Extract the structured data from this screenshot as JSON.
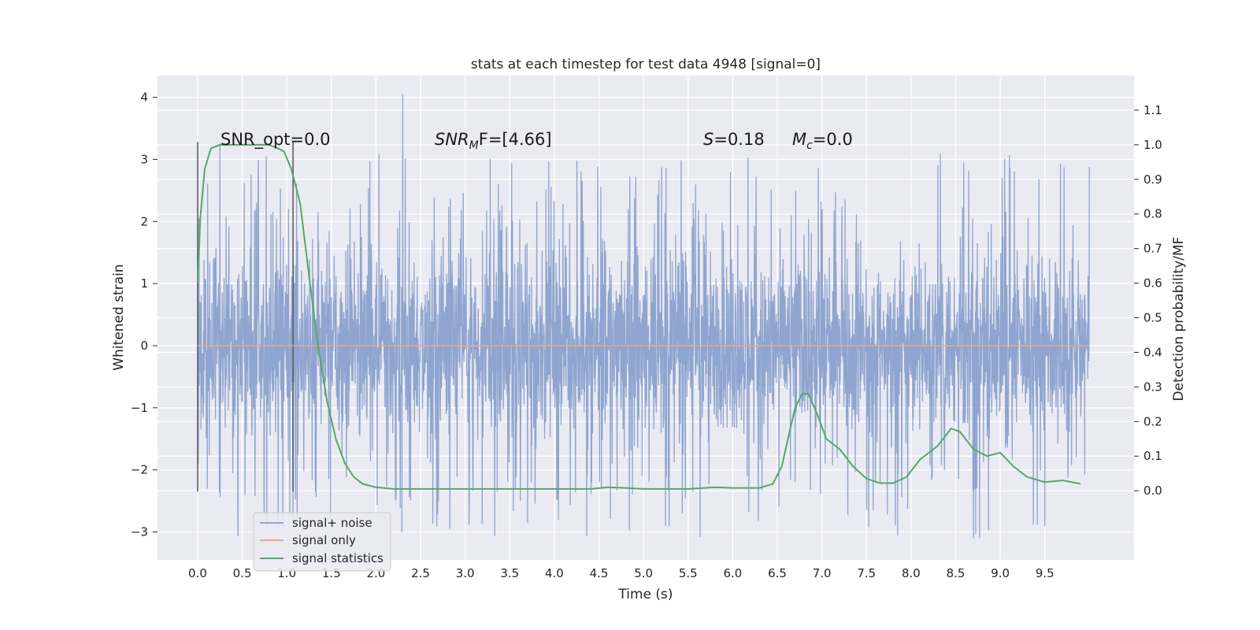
{
  "chart_data": {
    "type": "line",
    "title": "stats at each timestep for test data 4948 [signal=0]",
    "xlabel": "Time (s)",
    "ylabel": "Whitened strain",
    "y2label": "Detection probability/MF",
    "xlim": [
      -0.45,
      10.5
    ],
    "ylim": [
      -3.45,
      4.35
    ],
    "y2lim": [
      -0.2,
      1.2
    ],
    "x_ticks": [
      0.0,
      0.5,
      1.0,
      1.5,
      2.0,
      2.5,
      3.0,
      3.5,
      4.0,
      4.5,
      5.0,
      5.5,
      6.0,
      6.5,
      7.0,
      7.5,
      8.0,
      8.5,
      9.0,
      9.5
    ],
    "x_tick_labels": [
      "0.0",
      "0.5",
      "1.0",
      "1.5",
      "2.0",
      "2.5",
      "3.0",
      "3.5",
      "4.0",
      "4.5",
      "5.0",
      "5.5",
      "6.0",
      "6.5",
      "7.0",
      "7.5",
      "8.0",
      "8.5",
      "9.0",
      "9.5"
    ],
    "y_ticks": [
      -3,
      -2,
      -1,
      0,
      1,
      2,
      3,
      4
    ],
    "y_tick_labels": [
      "−3",
      "−2",
      "−1",
      "0",
      "1",
      "2",
      "3",
      "4"
    ],
    "y2_ticks": [
      0.0,
      0.1,
      0.2,
      0.3,
      0.4,
      0.5,
      0.6,
      0.7,
      0.8,
      0.9,
      1.0,
      1.1
    ],
    "y2_tick_labels": [
      "0.0",
      "0.1",
      "0.2",
      "0.3",
      "0.4",
      "0.5",
      "0.6",
      "0.7",
      "0.8",
      "0.9",
      "1.0",
      "1.1"
    ],
    "grid": true,
    "legend_position": "bottom-left",
    "annotations": {
      "snr_opt": "SNR_opt=0.0",
      "snr_mf_main": "SNR",
      "snr_mf_sub": "M",
      "snr_mf_rest": "F=[4.66]",
      "s_var": "S",
      "s_rest": "=0.18",
      "mc_var": "M",
      "mc_sub": "c",
      "mc_rest": "=0.0"
    },
    "markers": {
      "x": [
        0.0,
        1.07
      ],
      "y_range": [
        -2.35,
        3.28
      ]
    },
    "noise_series": {
      "name": "signal+ noise",
      "color": "#8fa5cf",
      "t_range": [
        0.0,
        10.0
      ],
      "core_amplitude": 1.4,
      "spike_amplitude_max": 3.3,
      "peak_points": [
        {
          "x": 0.25,
          "y": 3.25
        },
        {
          "x": 2.3,
          "y": 4.05
        },
        {
          "x": 2.7,
          "y": -2.5
        },
        {
          "x": 3.7,
          "y": -2.85
        },
        {
          "x": 7.85,
          "y": -3.05
        },
        {
          "x": 8.7,
          "y": -3.1
        },
        {
          "x": 9.5,
          "y": -2.9
        },
        {
          "x": 9.05,
          "y": 3.0
        },
        {
          "x": 8.3,
          "y": 2.9
        }
      ]
    },
    "series": [
      {
        "name": "signal only",
        "color": "#e6a88e",
        "x": [
          0.0,
          10.0
        ],
        "y": [
          0.0,
          0.0
        ]
      },
      {
        "name": "signal statistics",
        "color": "#55a868",
        "axis": "right",
        "x": [
          0.0,
          0.03,
          0.08,
          0.15,
          0.25,
          0.4,
          0.6,
          0.8,
          0.9,
          0.97,
          1.05,
          1.15,
          1.25,
          1.35,
          1.45,
          1.55,
          1.65,
          1.75,
          1.85,
          2.0,
          2.2,
          2.5,
          3.0,
          3.5,
          4.0,
          4.4,
          4.6,
          4.8,
          5.0,
          5.5,
          5.8,
          6.0,
          6.3,
          6.45,
          6.55,
          6.62,
          6.7,
          6.78,
          6.85,
          6.95,
          7.05,
          7.2,
          7.35,
          7.5,
          7.65,
          7.8,
          7.95,
          8.1,
          8.3,
          8.45,
          8.55,
          8.7,
          8.85,
          9.0,
          9.15,
          9.3,
          9.5,
          9.7,
          9.9
        ],
        "y": [
          0.6,
          0.79,
          0.93,
          0.99,
          1.0,
          1.0,
          1.0,
          1.0,
          0.99,
          0.98,
          0.93,
          0.83,
          0.62,
          0.42,
          0.26,
          0.15,
          0.08,
          0.04,
          0.02,
          0.01,
          0.005,
          0.005,
          0.005,
          0.005,
          0.005,
          0.005,
          0.01,
          0.008,
          0.005,
          0.005,
          0.01,
          0.008,
          0.008,
          0.02,
          0.07,
          0.15,
          0.24,
          0.28,
          0.28,
          0.22,
          0.15,
          0.12,
          0.07,
          0.035,
          0.022,
          0.022,
          0.04,
          0.09,
          0.13,
          0.18,
          0.17,
          0.12,
          0.1,
          0.11,
          0.07,
          0.04,
          0.025,
          0.03,
          0.02
        ]
      }
    ],
    "legend": [
      {
        "label": "signal+ noise",
        "color": "#8fa5cf"
      },
      {
        "label": "signal only",
        "color": "#e6a88e"
      },
      {
        "label": "signal statistics",
        "color": "#55a868"
      }
    ]
  }
}
